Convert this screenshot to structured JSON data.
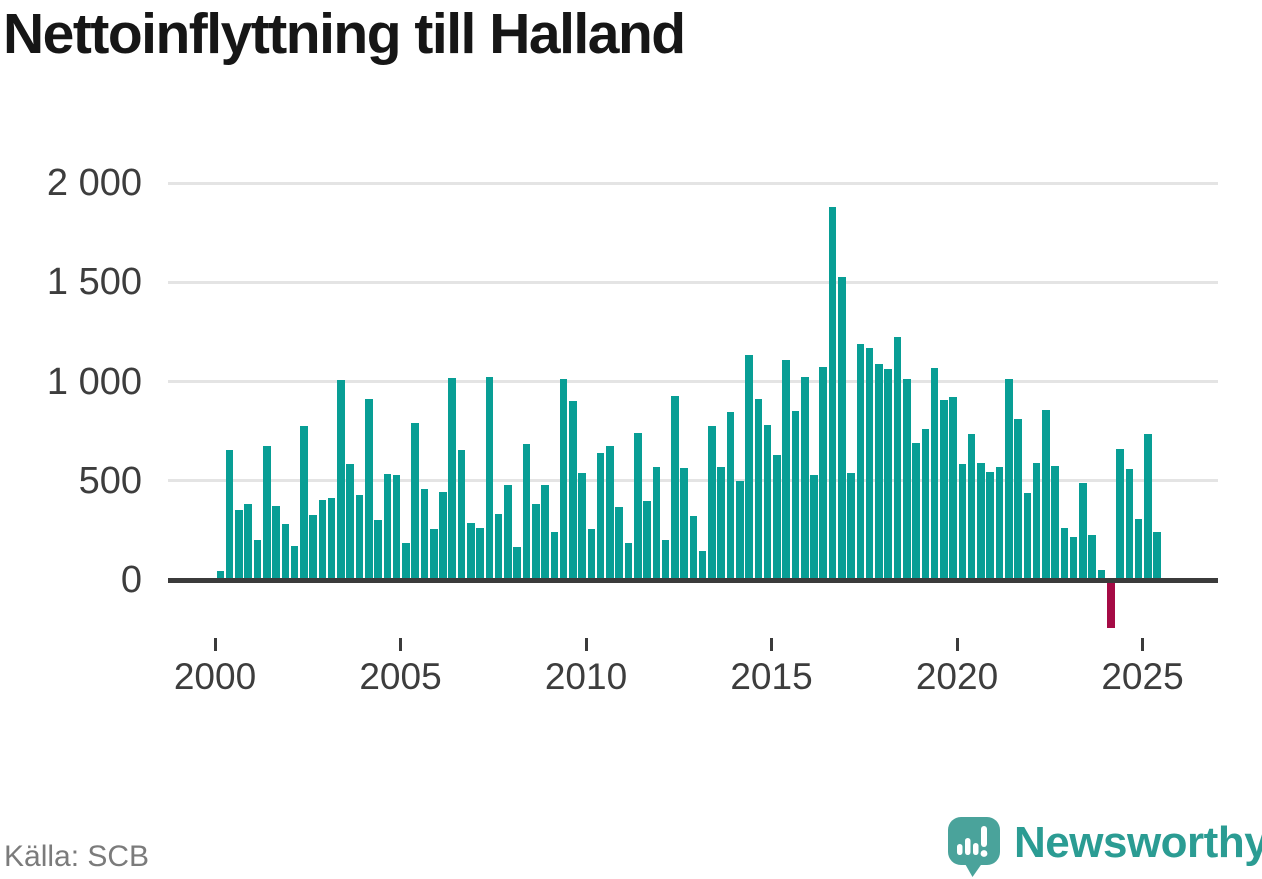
{
  "title": "Nettoinflyttning till Halland",
  "source_caption": "Källa: SCB",
  "brand": {
    "name": "Newsworthy",
    "icon": "newsworthy-speech-bubble-chart-icon"
  },
  "colors": {
    "bar_positive": "#089e95",
    "bar_negative": "#a50b45",
    "axis_line": "#3b3b3b",
    "gridline": "#e4e4e4",
    "title_text": "#161616",
    "axis_text": "#3d3d3d",
    "source_text": "#7b7b7b",
    "brand_teal": "#2b9c93",
    "brand_icon_teal": "#4aa39b"
  },
  "chart_data": {
    "type": "bar",
    "title": "Nettoinflyttning till Halland",
    "xlabel": "",
    "ylabel": "",
    "frequency": "quarterly",
    "start_period": "2000-Q1",
    "end_period": "2025-Q2",
    "grid": true,
    "legend": false,
    "ylim": [
      -300,
      2115
    ],
    "y_tick_values": [
      2000,
      1500,
      1000,
      500,
      0
    ],
    "y_tick_labels": [
      "2 000",
      "1 500",
      "1 000",
      "500",
      "0"
    ],
    "x_tick_years": [
      2000,
      2005,
      2010,
      2015,
      2020,
      2025
    ],
    "x_tick_labels": [
      "2000",
      "2005",
      "2010",
      "2015",
      "2020",
      "2025"
    ],
    "values": [
      45,
      655,
      353,
      383,
      202,
      675,
      373,
      282,
      171,
      776,
      328,
      403,
      413,
      1008,
      585,
      428,
      911,
      302,
      534,
      529,
      185,
      790,
      460,
      257,
      445,
      1016,
      655,
      285,
      260,
      1025,
      333,
      480,
      168,
      685,
      385,
      480,
      240,
      1015,
      900,
      540,
      257,
      638,
      673,
      370,
      185,
      740,
      400,
      570,
      200,
      925,
      563,
      323,
      148,
      775,
      570,
      845,
      500,
      1135,
      910,
      780,
      630,
      1110,
      850,
      1025,
      530,
      1075,
      1880,
      1525,
      540,
      1190,
      1170,
      1090,
      1065,
      1225,
      1015,
      690,
      760,
      1070,
      905,
      920,
      585,
      735,
      590,
      545,
      570,
      1015,
      810,
      437,
      590,
      855,
      575,
      260,
      215,
      490,
      225,
      50,
      -240,
      660,
      560,
      305,
      735,
      240
    ]
  }
}
